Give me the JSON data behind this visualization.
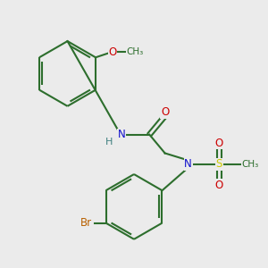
{
  "background_color": "#ebebeb",
  "bond_color": "#2d6e2d",
  "bond_width": 1.5,
  "colors": {
    "C": "#2d6e2d",
    "N": "#1010cc",
    "O": "#cc0000",
    "S": "#cccc00",
    "Br": "#b86000",
    "H": "#408080"
  },
  "font_size": 8.5
}
